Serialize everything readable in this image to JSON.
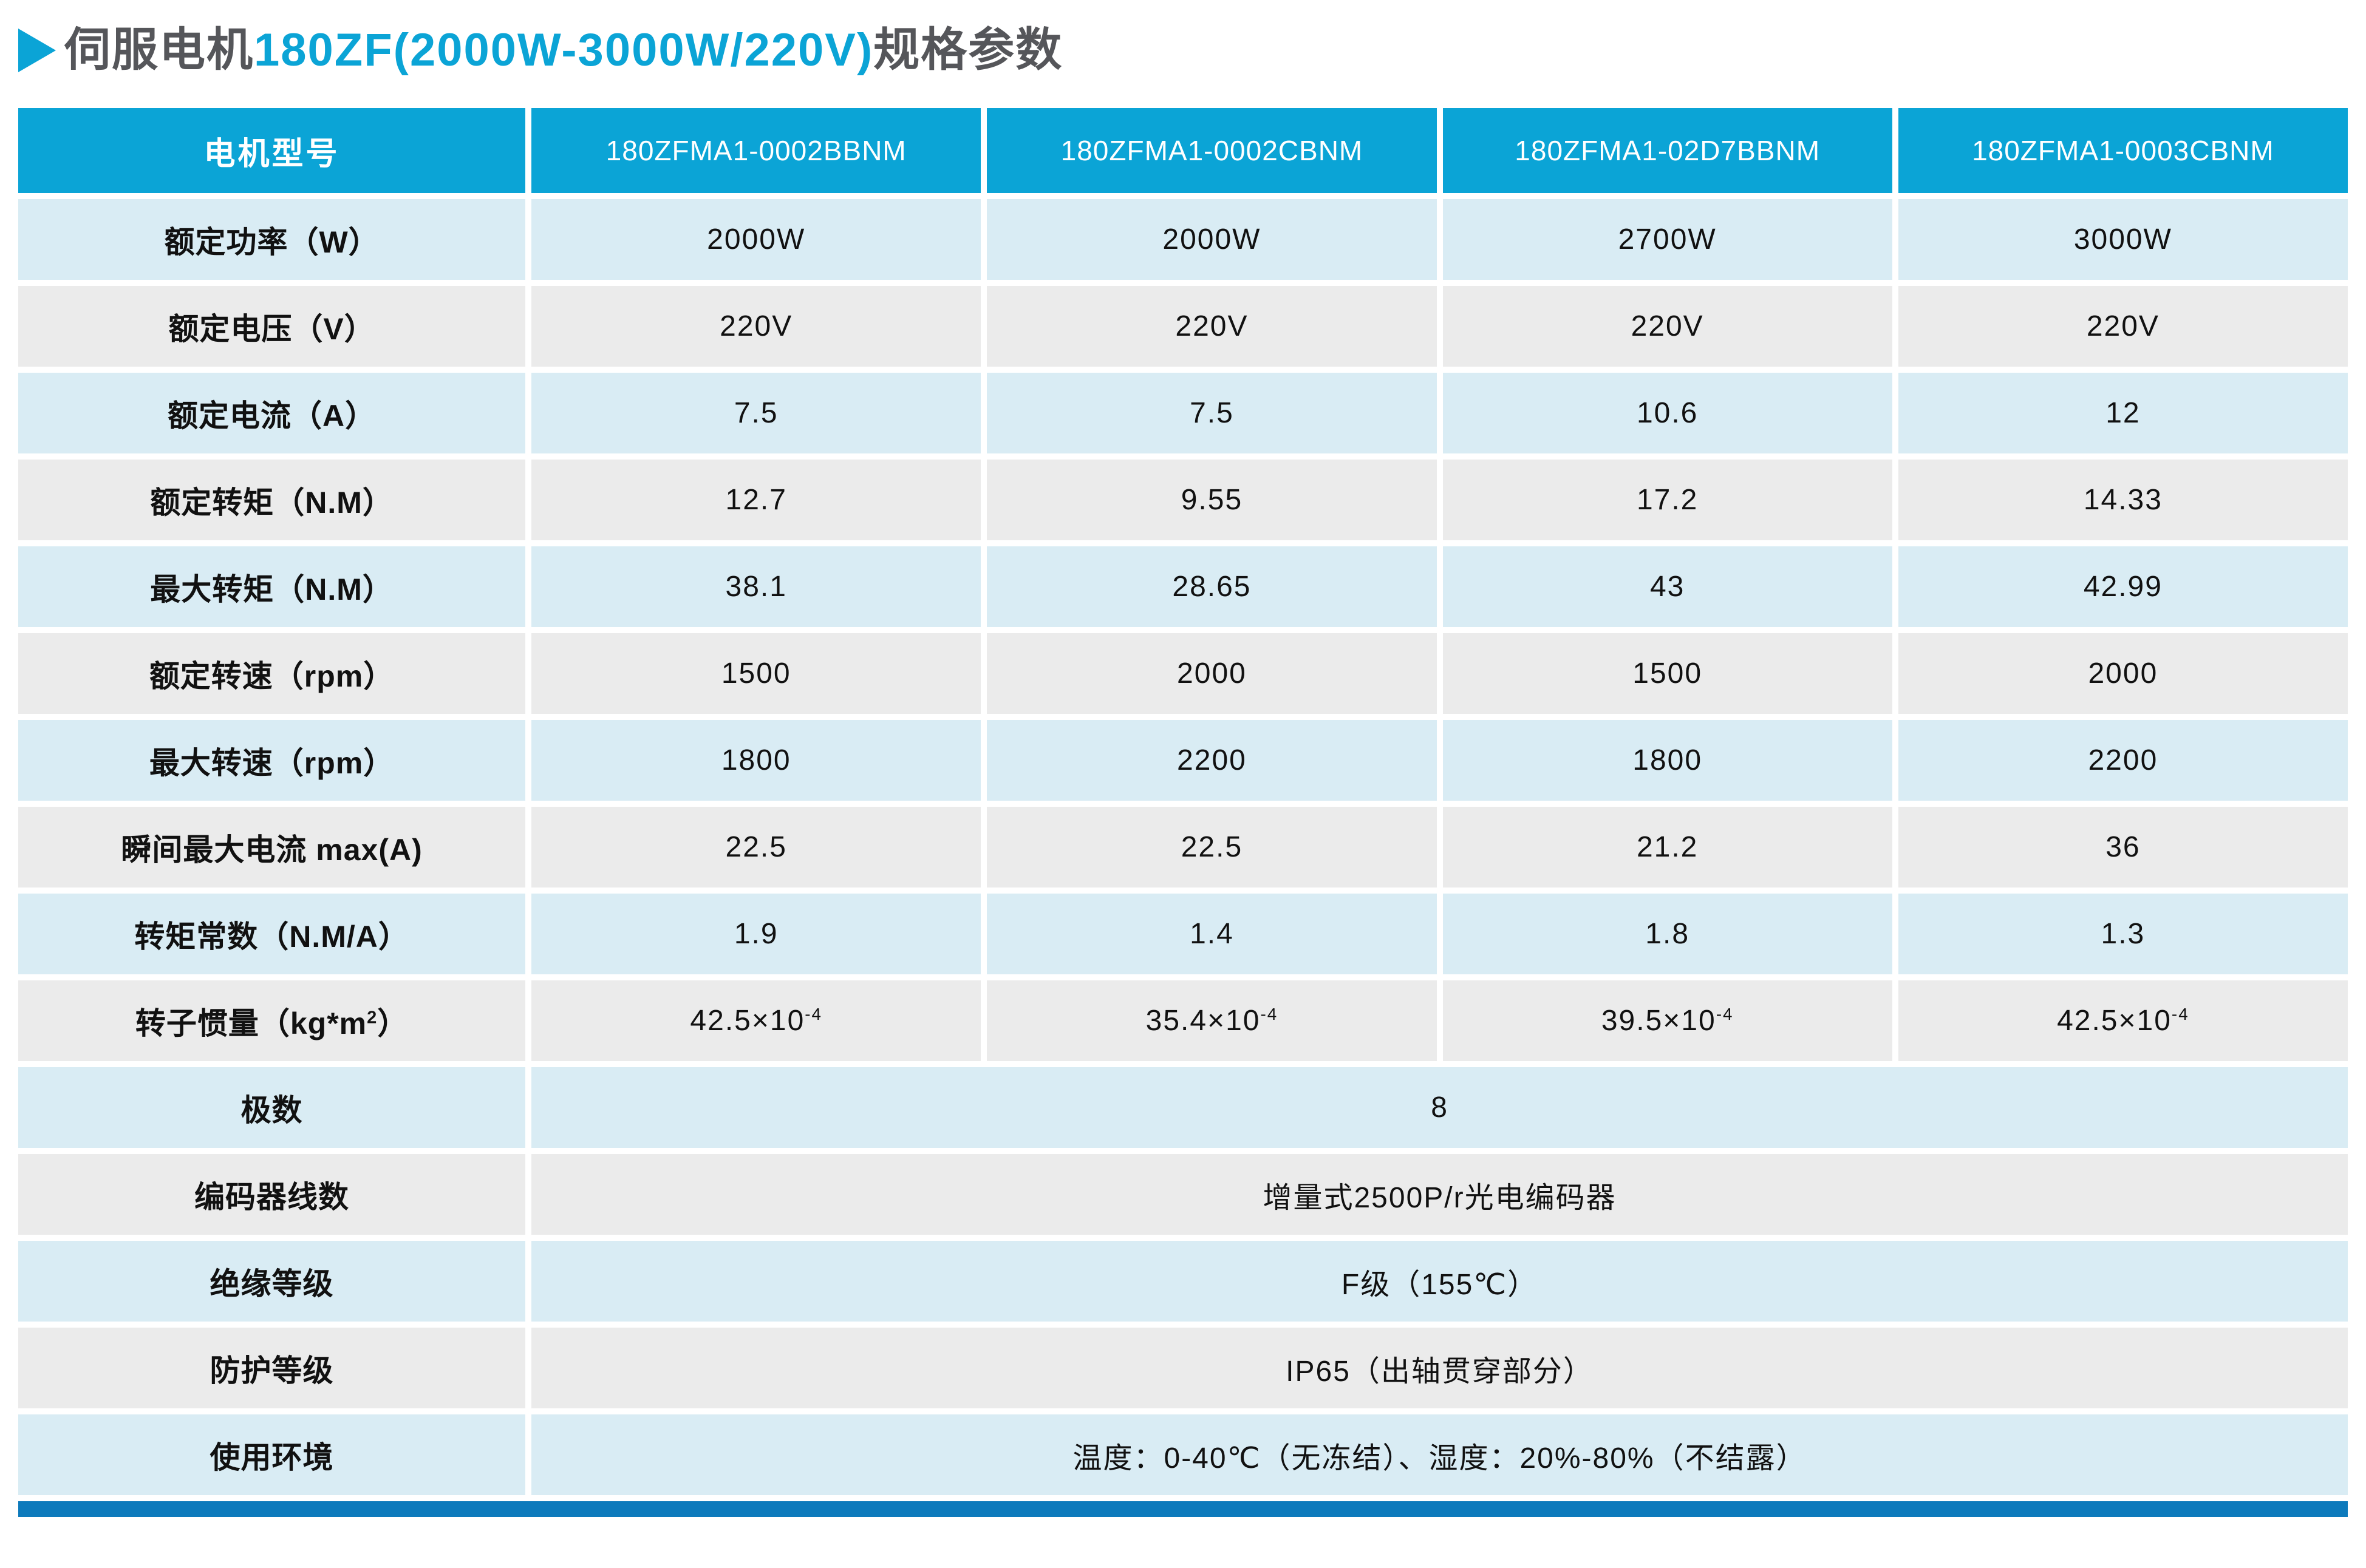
{
  "title": {
    "prefix": "伺服电机",
    "highlight": "180ZF(2000W-3000W/220V)",
    "suffix": "规格参数"
  },
  "table": {
    "header": [
      "电机型号",
      "180ZFMA1-0002BBNM",
      "180ZFMA1-0002CBNM",
      "180ZFMA1-02D7BBNM",
      "180ZFMA1-0003CBNM"
    ],
    "rows": [
      {
        "label": "额定功率（W）",
        "values": [
          "2000W",
          "2000W",
          "2700W",
          "3000W"
        ]
      },
      {
        "label": "额定电压（V）",
        "values": [
          "220V",
          "220V",
          "220V",
          "220V"
        ]
      },
      {
        "label": "额定电流（A）",
        "values": [
          "7.5",
          "7.5",
          "10.6",
          "12"
        ]
      },
      {
        "label": "额定转矩（N.M）",
        "values": [
          "12.7",
          "9.55",
          "17.2",
          "14.33"
        ]
      },
      {
        "label": "最大转矩（N.M）",
        "values": [
          "38.1",
          "28.65",
          "43",
          "42.99"
        ]
      },
      {
        "label": "额定转速（rpm）",
        "values": [
          "1500",
          "2000",
          "1500",
          "2000"
        ]
      },
      {
        "label": "最大转速（rpm）",
        "values": [
          "1800",
          "2200",
          "1800",
          "2200"
        ]
      },
      {
        "label": "瞬间最大电流 max(A)",
        "values": [
          "22.5",
          "22.5",
          "21.2",
          "36"
        ]
      },
      {
        "label": "转矩常数（N.M/A）",
        "values": [
          "1.9",
          "1.4",
          "1.8",
          "1.3"
        ]
      },
      {
        "label": "转子惯量（kg*m^{2}）",
        "values": [
          "42.5×10^{-4}",
          "35.4×10^{-4}",
          "39.5×10^{-4}",
          "42.5×10^{-4}"
        ]
      },
      {
        "label": "极数",
        "values": [
          "8"
        ]
      },
      {
        "label": "编码器线数",
        "values": [
          "增量式2500P/r光电编码器"
        ]
      },
      {
        "label": "绝缘等级",
        "values": [
          "F级（155℃）"
        ]
      },
      {
        "label": "防护等级",
        "values": [
          "IP65（出轴贯穿部分）"
        ]
      },
      {
        "label": "使用环境",
        "values": [
          "温度：0-40℃（无冻结）、湿度：20%-80%（不结露）"
        ]
      }
    ]
  },
  "colors": {
    "accent": "#0ba4d6",
    "row-blue": "#d9ecf4",
    "row-gray": "#ebebeb",
    "bar-blue": "#0d7abc",
    "title-gray": "#55565a",
    "cell-text": "#111111"
  }
}
